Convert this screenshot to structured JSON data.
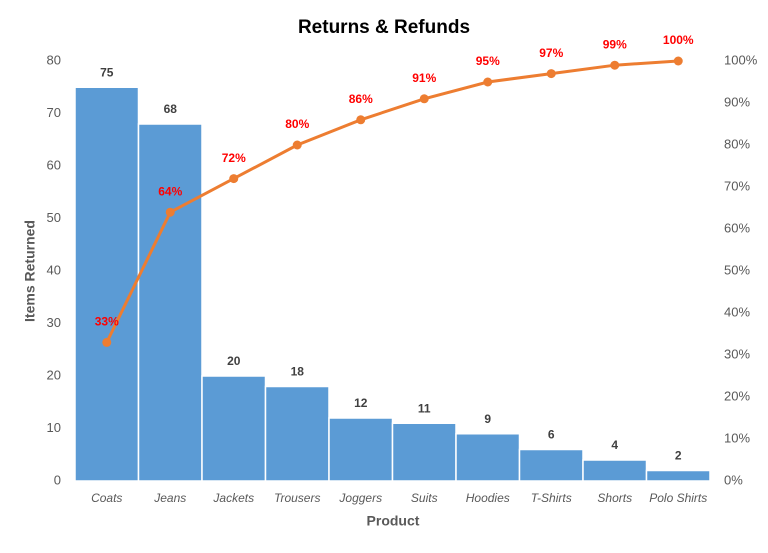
{
  "chart_data": {
    "type": "pareto",
    "title": "Returns & Refunds",
    "x_label": "Product",
    "y_label": "Items Returned",
    "categories": [
      "Coats",
      "Jeans",
      "Jackets",
      "Trousers",
      "Joggers",
      "Suits",
      "Hoodies",
      "T-Shirts",
      "Shorts",
      "Polo Shirts"
    ],
    "series": [
      {
        "type": "bar",
        "color": "#5b9bd5",
        "axis": "y",
        "values": [
          75,
          68,
          20,
          18,
          12,
          11,
          9,
          6,
          4,
          2
        ]
      },
      {
        "type": "line",
        "color": "#ed7d31",
        "axis": "y2",
        "values": [
          33,
          64,
          72,
          80,
          86,
          91,
          95,
          97,
          99,
          100
        ],
        "value_labels": [
          "33%",
          "64%",
          "72%",
          "80%",
          "86%",
          "91%",
          "95%",
          "97%",
          "99%",
          "100%"
        ]
      }
    ],
    "ylim": [
      0,
      80
    ],
    "yticks": [
      0,
      10,
      20,
      30,
      40,
      50,
      60,
      70,
      80
    ],
    "y2lim": [
      0,
      100
    ],
    "y2ticks": [
      {
        "value": 0,
        "label": "0%"
      },
      {
        "value": 10,
        "label": "10%"
      },
      {
        "value": 20,
        "label": "20%"
      },
      {
        "value": 30,
        "label": "30%"
      },
      {
        "value": 40,
        "label": "40%"
      },
      {
        "value": 50,
        "label": "50%"
      },
      {
        "value": 60,
        "label": "60%"
      },
      {
        "value": 70,
        "label": "70%"
      },
      {
        "value": 80,
        "label": "80%"
      },
      {
        "value": 90,
        "label": "90%"
      },
      {
        "value": 100,
        "label": "100%"
      }
    ],
    "grid": false
  }
}
